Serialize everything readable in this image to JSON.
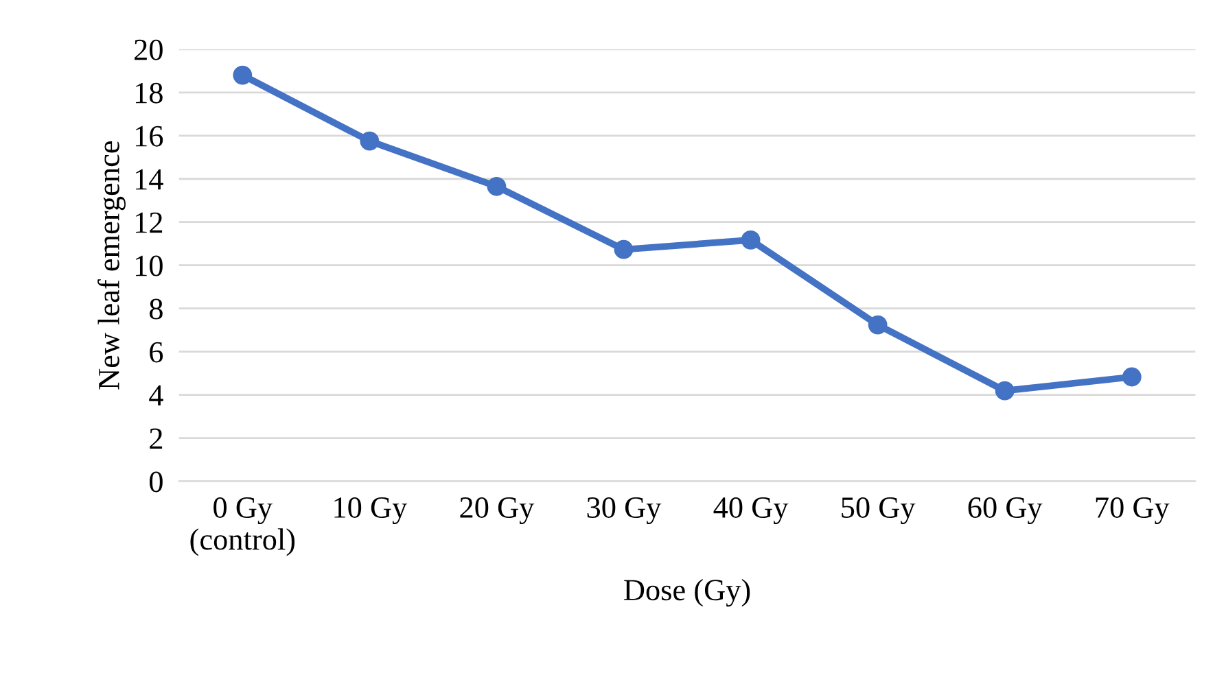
{
  "chart_data": {
    "type": "line",
    "xlabel": "Dose (Gy)",
    "ylabel": "New leaf emergence",
    "categories": [
      "0 Gy\n(control)",
      "10 Gy",
      "20 Gy",
      "30 Gy",
      "40 Gy",
      "50 Gy",
      "60 Gy",
      "70 Gy"
    ],
    "series": [
      {
        "color": "#4472c4",
        "values": [
          18.8,
          15.75,
          13.65,
          10.73,
          11.17,
          7.24,
          4.19,
          4.83
        ]
      }
    ],
    "ylim": [
      0,
      20
    ],
    "yticks": [
      0,
      2,
      4,
      6,
      8,
      10,
      12,
      14,
      16,
      18,
      20
    ],
    "grid": "y",
    "marker": "circle",
    "line_style": "solid",
    "legend": false
  }
}
